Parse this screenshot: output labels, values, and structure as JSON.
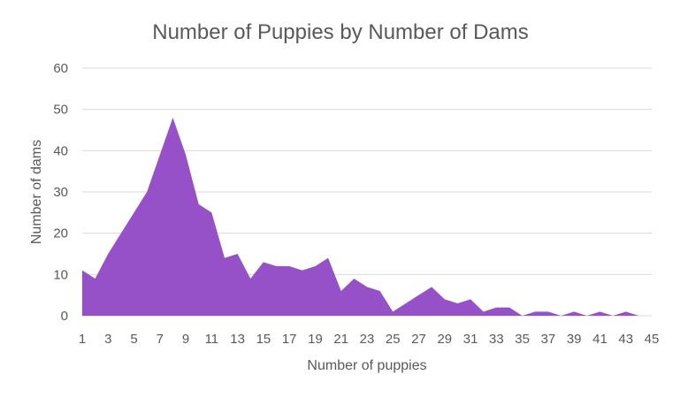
{
  "chart_data": {
    "type": "area",
    "title": "Number of Puppies by Number of Dams",
    "xlabel": "Number of puppies",
    "ylabel": "Number of dams",
    "ylim": [
      0,
      60
    ],
    "xlim": [
      1,
      45
    ],
    "y_ticks": [
      0,
      10,
      20,
      30,
      40,
      50,
      60
    ],
    "x_ticks": [
      1,
      3,
      5,
      7,
      9,
      11,
      13,
      15,
      17,
      19,
      21,
      23,
      25,
      27,
      29,
      31,
      33,
      35,
      37,
      39,
      41,
      43,
      45
    ],
    "grid": true,
    "legend": "none",
    "color": "#9650c8",
    "x": [
      1,
      2,
      3,
      4,
      5,
      6,
      7,
      8,
      9,
      10,
      11,
      12,
      13,
      14,
      15,
      16,
      17,
      18,
      19,
      20,
      21,
      22,
      23,
      24,
      25,
      26,
      27,
      28,
      29,
      30,
      31,
      32,
      33,
      34,
      35,
      36,
      37,
      38,
      39,
      40,
      41,
      42,
      43,
      44
    ],
    "values": [
      11,
      9,
      15,
      20,
      25,
      30,
      39,
      48,
      39,
      27,
      25,
      14,
      15,
      9,
      13,
      12,
      12,
      11,
      12,
      14,
      6,
      9,
      7,
      6,
      1,
      3,
      5,
      7,
      4,
      3,
      4,
      1,
      2,
      2,
      0,
      1,
      1,
      0,
      1,
      0,
      1,
      0,
      1,
      0
    ]
  }
}
